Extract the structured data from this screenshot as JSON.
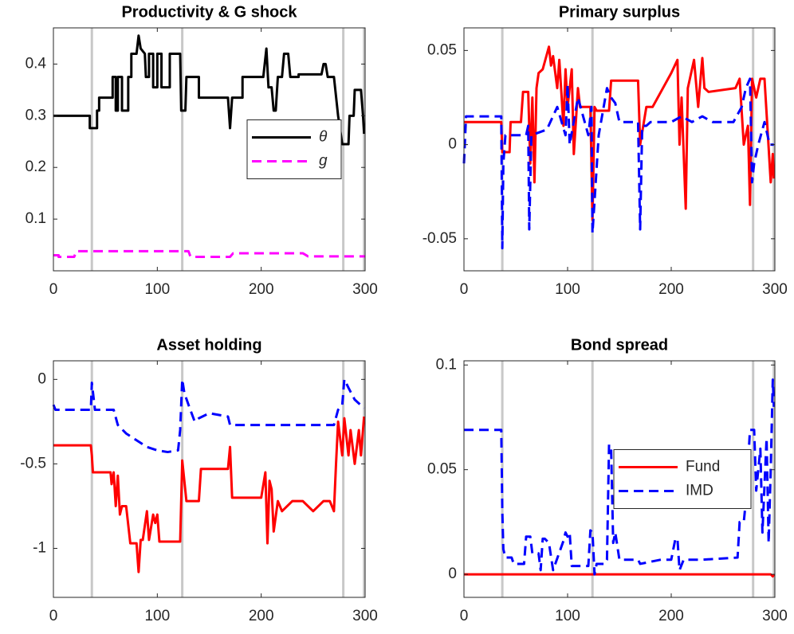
{
  "chart_data": [
    {
      "type": "line",
      "title": "Productivity & G shock",
      "xlim": [
        0,
        300
      ],
      "ylim": [
        0,
        0.47
      ],
      "xticks": [
        0,
        100,
        200,
        300
      ],
      "yticks": [
        0.1,
        0.2,
        0.3,
        0.4
      ],
      "vlines": [
        37,
        124,
        279,
        299
      ],
      "legend": "east",
      "series": [
        {
          "name": "θ",
          "color": "#000000",
          "style": "solid",
          "x": [
            0,
            35,
            35,
            42,
            42,
            44,
            44,
            57,
            57,
            60,
            60,
            62,
            62,
            66,
            66,
            72,
            72,
            75,
            75,
            80,
            82,
            84,
            88,
            89,
            92,
            92,
            96,
            96,
            100,
            100,
            104,
            104,
            112,
            112,
            122,
            123,
            127,
            128,
            140,
            140,
            168,
            170,
            172,
            182,
            182,
            202,
            205,
            207,
            210,
            212,
            214,
            216,
            220,
            222,
            226,
            228,
            236,
            236,
            258,
            260,
            262,
            264,
            270,
            274,
            278,
            284,
            285,
            289,
            290,
            296,
            298,
            299
          ],
          "values": [
            0.3,
            0.3,
            0.276,
            0.276,
            0.31,
            0.31,
            0.335,
            0.335,
            0.375,
            0.375,
            0.31,
            0.31,
            0.375,
            0.375,
            0.31,
            0.31,
            0.375,
            0.375,
            0.42,
            0.42,
            0.455,
            0.43,
            0.42,
            0.375,
            0.375,
            0.42,
            0.42,
            0.355,
            0.355,
            0.42,
            0.42,
            0.355,
            0.355,
            0.42,
            0.42,
            0.31,
            0.31,
            0.375,
            0.375,
            0.335,
            0.335,
            0.276,
            0.335,
            0.335,
            0.375,
            0.375,
            0.43,
            0.355,
            0.355,
            0.31,
            0.31,
            0.375,
            0.375,
            0.42,
            0.42,
            0.375,
            0.375,
            0.38,
            0.38,
            0.4,
            0.4,
            0.375,
            0.375,
            0.3,
            0.245,
            0.245,
            0.3,
            0.3,
            0.35,
            0.35,
            0.3,
            0.265
          ]
        },
        {
          "name": "g",
          "color": "#ff00ff",
          "style": "dashed",
          "x": [
            0,
            5,
            5,
            20,
            22,
            130,
            132,
            170,
            173,
            240,
            245,
            300
          ],
          "values": [
            0.03,
            0.03,
            0.027,
            0.027,
            0.038,
            0.038,
            0.027,
            0.027,
            0.034,
            0.034,
            0.028,
            0.028
          ]
        }
      ]
    },
    {
      "type": "line",
      "title": "Primary surplus",
      "xlim": [
        0,
        300
      ],
      "ylim": [
        -0.067,
        0.062
      ],
      "xticks": [
        0,
        100,
        200,
        300
      ],
      "yticks": [
        -0.05,
        0,
        0.05
      ],
      "vlines": [
        37,
        124,
        279,
        299
      ],
      "series": [
        {
          "color": "#ff0000",
          "style": "solid",
          "x": [
            0,
            36,
            37,
            44,
            45,
            55,
            57,
            62,
            64,
            66,
            68,
            70,
            72,
            76,
            80,
            82,
            84,
            86,
            90,
            92,
            96,
            98,
            100,
            104,
            106,
            110,
            112,
            122,
            124,
            126,
            128,
            140,
            142,
            168,
            170,
            176,
            182,
            194,
            200,
            206,
            208,
            210,
            214,
            216,
            222,
            226,
            230,
            232,
            236,
            262,
            266,
            270,
            274,
            276,
            278,
            282,
            286,
            290,
            296,
            298,
            299
          ],
          "values": [
            0.012,
            0.012,
            -0.004,
            -0.004,
            0.012,
            0.012,
            0.028,
            0.028,
            -0.01,
            0.025,
            -0.02,
            0.03,
            0.038,
            0.04,
            0.048,
            0.052,
            0.042,
            0.047,
            0.03,
            0.045,
            0.01,
            0.04,
            0.02,
            0.04,
            -0.005,
            0.03,
            0.02,
            0.02,
            -0.04,
            0.02,
            0.018,
            0.018,
            0.034,
            0.034,
            0,
            0.02,
            0.02,
            0.032,
            0.038,
            0.045,
            0,
            0.025,
            -0.034,
            0.03,
            0.045,
            0.02,
            0.046,
            0.03,
            0.028,
            0.03,
            0.035,
            0,
            0.01,
            -0.032,
            0.035,
            0.025,
            0.035,
            0.035,
            -0.02,
            -0.005,
            -0.018
          ]
        },
        {
          "color": "#0000ff",
          "style": "dashed",
          "x": [
            0,
            2,
            36,
            37,
            38,
            40,
            60,
            62,
            63,
            65,
            80,
            90,
            98,
            100,
            102,
            110,
            120,
            123,
            124,
            126,
            130,
            138,
            142,
            146,
            150,
            168,
            170,
            172,
            176,
            180,
            200,
            210,
            220,
            230,
            240,
            260,
            268,
            272,
            276,
            278,
            280,
            284,
            290,
            295,
            299
          ],
          "values": [
            -0.01,
            0.015,
            0.015,
            -0.055,
            -0.01,
            0.005,
            0.005,
            0.01,
            -0.045,
            0.005,
            0.008,
            0.02,
            0.005,
            0.032,
            0,
            0.025,
            0.005,
            0.02,
            -0.047,
            -0.03,
            0.005,
            0.03,
            0.025,
            0.022,
            0.012,
            0.012,
            -0.045,
            0.01,
            0.01,
            0.012,
            0.012,
            0.015,
            0.012,
            0.015,
            0.012,
            0.012,
            0.02,
            0.03,
            0.035,
            -0.02,
            -0.01,
            0,
            0.012,
            0,
            0
          ]
        }
      ]
    },
    {
      "type": "line",
      "title": "Asset holding",
      "xlim": [
        0,
        300
      ],
      "ylim": [
        -1.29,
        0.11
      ],
      "xticks": [
        0,
        100,
        200,
        300
      ],
      "yticks": [
        -1,
        -0.5,
        0
      ],
      "vlines": [
        37,
        124,
        279,
        299
      ],
      "series": [
        {
          "color": "#ff0000",
          "style": "solid",
          "x": [
            0,
            36,
            37,
            38,
            55,
            56,
            58,
            60,
            62,
            64,
            66,
            70,
            74,
            76,
            80,
            82,
            84,
            86,
            90,
            92,
            96,
            98,
            100,
            102,
            122,
            124,
            126,
            128,
            140,
            142,
            168,
            170,
            172,
            200,
            204,
            206,
            208,
            210,
            212,
            216,
            220,
            230,
            240,
            250,
            260,
            266,
            270,
            272,
            274,
            278,
            280,
            284,
            286,
            290,
            294,
            296,
            299
          ],
          "values": [
            -0.39,
            -0.39,
            -0.45,
            -0.55,
            -0.55,
            -0.62,
            -0.55,
            -0.75,
            -0.57,
            -0.8,
            -0.75,
            -0.75,
            -0.97,
            -0.97,
            -0.97,
            -1.14,
            -0.95,
            -0.95,
            -0.78,
            -0.95,
            -0.8,
            -0.85,
            -0.8,
            -0.96,
            -0.96,
            -0.48,
            -0.6,
            -0.72,
            -0.72,
            -0.53,
            -0.53,
            -0.4,
            -0.7,
            -0.7,
            -0.55,
            -0.97,
            -0.6,
            -0.65,
            -0.9,
            -0.72,
            -0.78,
            -0.72,
            -0.72,
            -0.78,
            -0.72,
            -0.72,
            -0.78,
            -0.5,
            -0.25,
            -0.45,
            -0.23,
            -0.45,
            -0.3,
            -0.5,
            -0.3,
            -0.45,
            -0.22
          ]
        },
        {
          "color": "#0000ff",
          "style": "dashed",
          "x": [
            0,
            2,
            36,
            37,
            40,
            58,
            62,
            70,
            80,
            90,
            100,
            110,
            120,
            122,
            124,
            126,
            130,
            136,
            140,
            150,
            168,
            170,
            200,
            240,
            270,
            274,
            278,
            280,
            284,
            290,
            299
          ],
          "values": [
            -0.15,
            -0.18,
            -0.18,
            -0.02,
            -0.18,
            -0.18,
            -0.27,
            -0.32,
            -0.36,
            -0.4,
            -0.42,
            -0.43,
            -0.42,
            -0.3,
            0,
            -0.08,
            -0.15,
            -0.25,
            -0.23,
            -0.2,
            -0.22,
            -0.27,
            -0.27,
            -0.27,
            -0.27,
            -0.18,
            -0.15,
            0,
            -0.05,
            -0.12,
            -0.17
          ]
        }
      ]
    },
    {
      "type": "line",
      "title": "Bond spread",
      "xlim": [
        0,
        300
      ],
      "ylim": [
        -0.011,
        0.102
      ],
      "xticks": [
        0,
        100,
        200,
        300
      ],
      "yticks": [
        0,
        0.05,
        0.1
      ],
      "vlines": [
        37,
        124,
        279,
        299
      ],
      "legend": "east",
      "series": [
        {
          "name": "Fund",
          "color": "#ff0000",
          "style": "solid",
          "x": [
            0,
            296,
            298,
            299
          ],
          "values": [
            0,
            0,
            -0.001,
            0
          ]
        },
        {
          "name": "IMD",
          "color": "#0000ff",
          "style": "dashed",
          "x": [
            0,
            36,
            37,
            38,
            40,
            46,
            48,
            58,
            60,
            64,
            66,
            72,
            74,
            76,
            78,
            82,
            86,
            96,
            98,
            100,
            102,
            104,
            120,
            122,
            124,
            126,
            128,
            136,
            138,
            140,
            142,
            144,
            146,
            150,
            168,
            170,
            190,
            200,
            204,
            206,
            208,
            212,
            226,
            230,
            264,
            266,
            270,
            272,
            276,
            280,
            282,
            286,
            288,
            292,
            294,
            296,
            298,
            299
          ],
          "values": [
            0.069,
            0.069,
            0.03,
            0.012,
            0.008,
            0.008,
            0.005,
            0.005,
            0.018,
            0.018,
            0.01,
            0.01,
            0.002,
            0.017,
            0.017,
            0.015,
            0.002,
            0.016,
            0.02,
            0.018,
            0.02,
            0.004,
            0.004,
            0.021,
            0.02,
            0,
            0.005,
            0.005,
            0.007,
            0.062,
            0.06,
            0.015,
            0.02,
            0.007,
            0.007,
            0.005,
            0.007,
            0.007,
            0.017,
            0.017,
            0.002,
            0.007,
            0.007,
            0.007,
            0.008,
            0.025,
            0.025,
            0.035,
            0.069,
            0.069,
            0.04,
            0.06,
            0.02,
            0.065,
            0.015,
            0.05,
            0.093,
            0.08
          ]
        }
      ]
    }
  ]
}
